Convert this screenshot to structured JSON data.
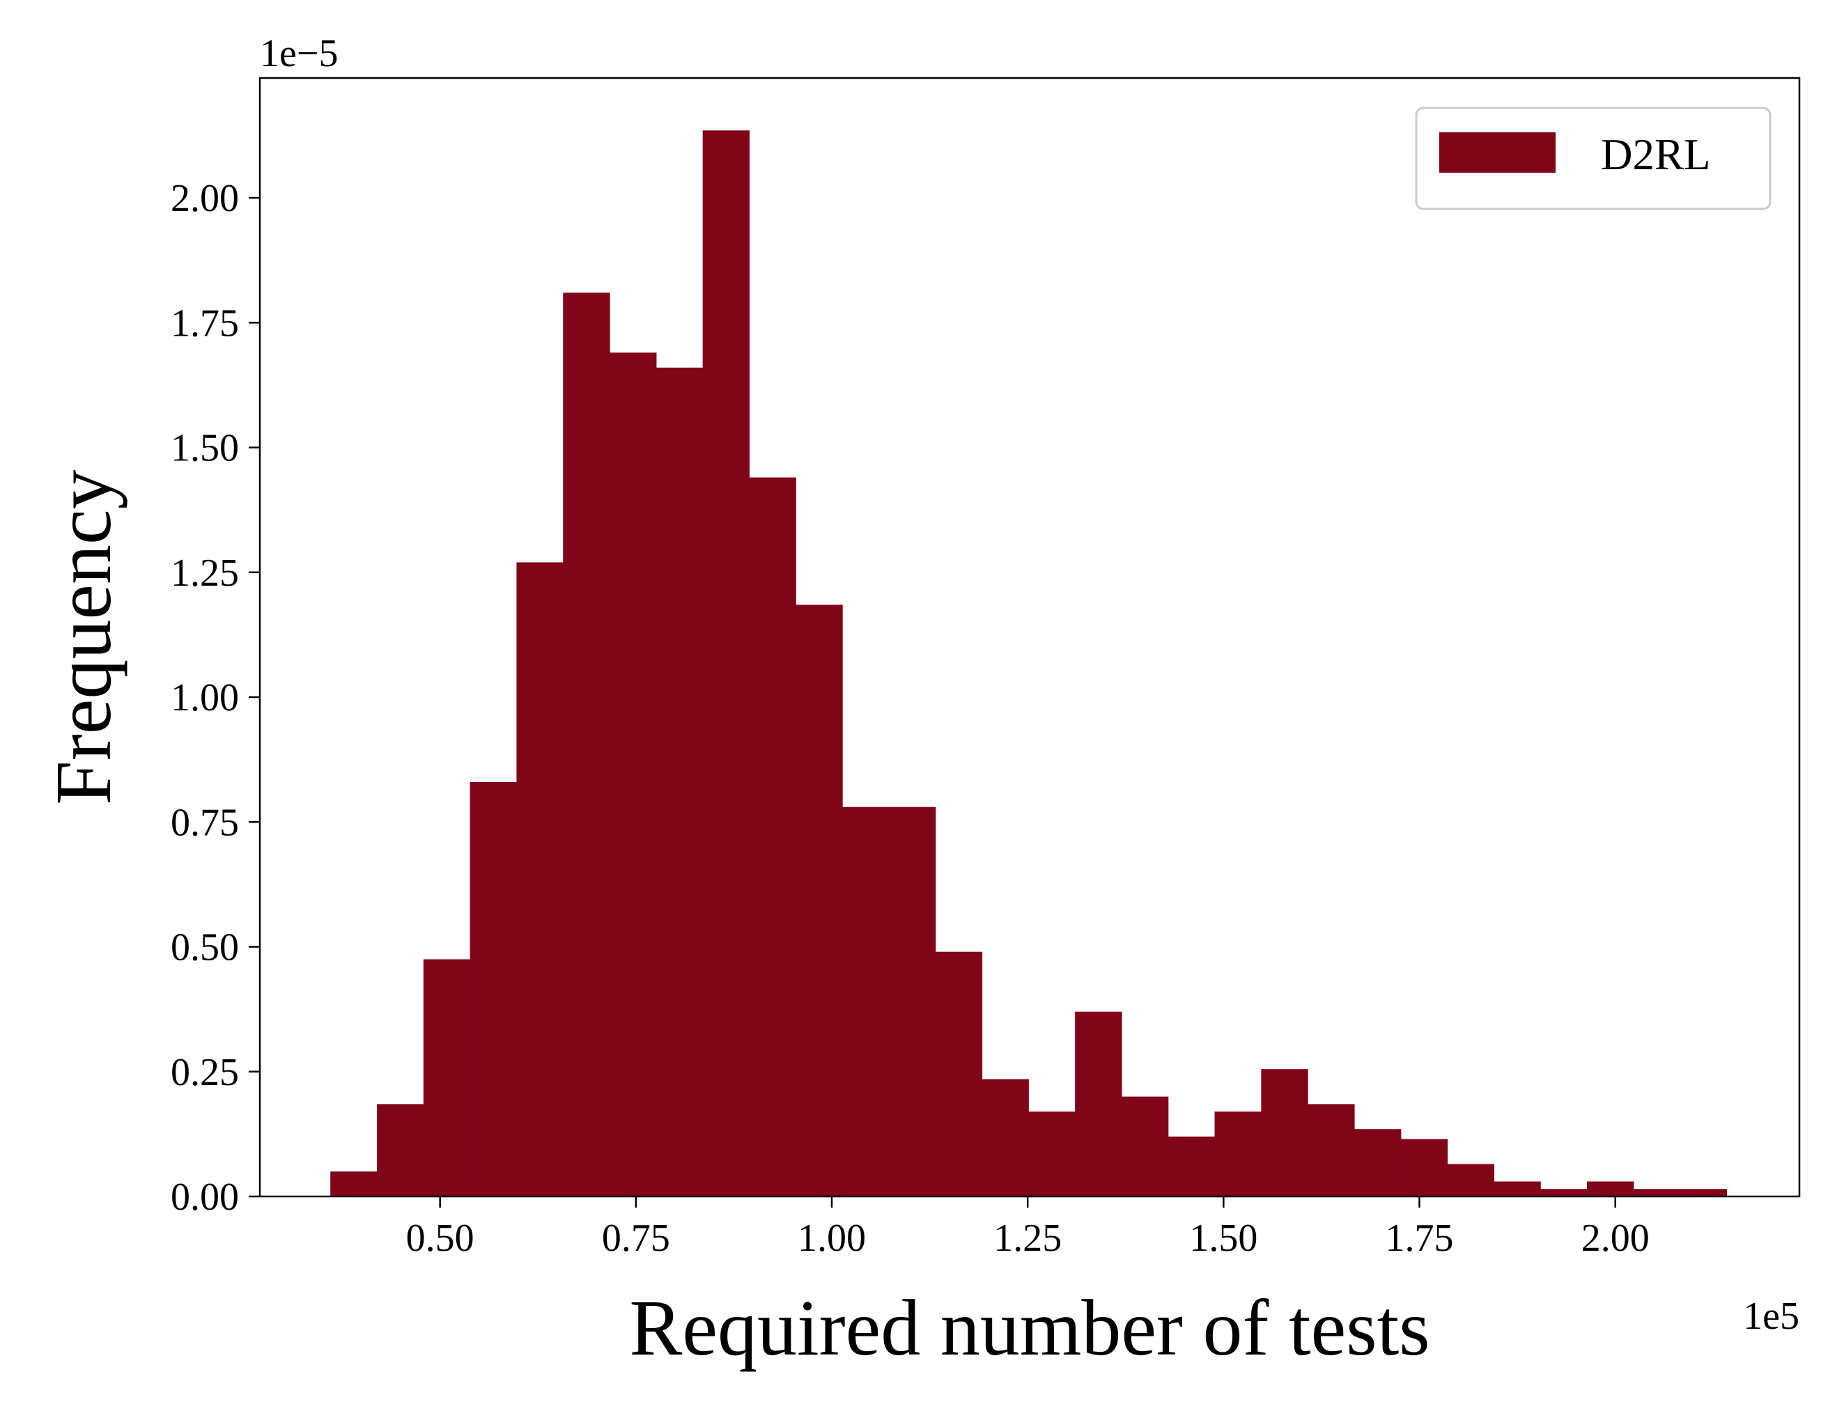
{
  "chart_data": {
    "type": "bar",
    "title": "",
    "xlabel": "Required number of tests",
    "ylabel": "Frequency",
    "x_offset_label": "1e5",
    "y_offset_label": "1e−5",
    "xlim": [
      0.27,
      2.235
    ],
    "ylim": [
      0,
      2.24
    ],
    "xticks": [
      {
        "value": 0.5,
        "label": "0.50"
      },
      {
        "value": 0.75,
        "label": "0.75"
      },
      {
        "value": 1.0,
        "label": "1.00"
      },
      {
        "value": 1.25,
        "label": "1.25"
      },
      {
        "value": 1.5,
        "label": "1.50"
      },
      {
        "value": 1.75,
        "label": "1.75"
      },
      {
        "value": 2.0,
        "label": "2.00"
      }
    ],
    "yticks": [
      {
        "value": 0.0,
        "label": "0.00"
      },
      {
        "value": 0.25,
        "label": "0.25"
      },
      {
        "value": 0.5,
        "label": "0.50"
      },
      {
        "value": 0.75,
        "label": "0.75"
      },
      {
        "value": 1.0,
        "label": "1.00"
      },
      {
        "value": 1.25,
        "label": "1.25"
      },
      {
        "value": 1.5,
        "label": "1.50"
      },
      {
        "value": 1.75,
        "label": "1.75"
      },
      {
        "value": 2.0,
        "label": "2.00"
      }
    ],
    "grid": false,
    "legend_position": "top-right",
    "series": [
      {
        "name": "D2RL",
        "color": "#800519",
        "bin_start": 0.36,
        "bin_width": 0.0594,
        "values": [
          0.05,
          0.185,
          0.475,
          0.83,
          1.27,
          1.81,
          1.69,
          1.66,
          2.135,
          1.44,
          1.185,
          0.78,
          0.78,
          0.49,
          0.235,
          0.17,
          0.37,
          0.2,
          0.12,
          0.17,
          0.255,
          0.185,
          0.135,
          0.115,
          0.065,
          0.03,
          0.015,
          0.03,
          0.015,
          0.015
        ]
      }
    ]
  }
}
